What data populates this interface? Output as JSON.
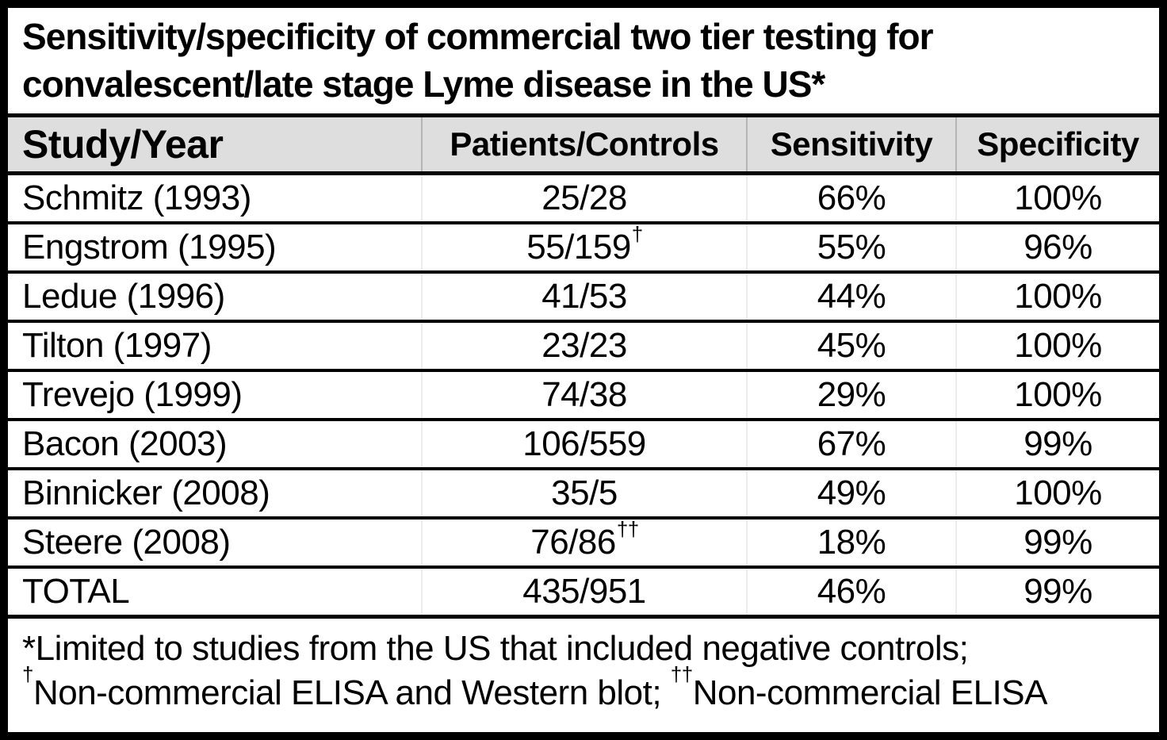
{
  "chart_data": {
    "type": "table",
    "title": "Sensitivity/specificity of commercial two tier testing for convalescent/late stage Lyme disease in the US*",
    "title_line1": "Sensitivity/specificity of commercial two tier testing for",
    "title_line2": "convalescent/late stage Lyme disease in the US*",
    "columns": [
      "Study/Year",
      "Patients/Controls",
      "Sensitivity",
      "Specificity"
    ],
    "rows": [
      {
        "study": "Schmitz (1993)",
        "patients_controls": "25/28",
        "superscript": "",
        "sensitivity": "66%",
        "specificity": "100%"
      },
      {
        "study": "Engstrom (1995)",
        "patients_controls": "55/159",
        "superscript": "†",
        "sensitivity": "55%",
        "specificity": "96%"
      },
      {
        "study": "Ledue (1996)",
        "patients_controls": "41/53",
        "superscript": "",
        "sensitivity": "44%",
        "specificity": "100%"
      },
      {
        "study": "Tilton (1997)",
        "patients_controls": "23/23",
        "superscript": "",
        "sensitivity": "45%",
        "specificity": "100%"
      },
      {
        "study": "Trevejo (1999)",
        "patients_controls": "74/38",
        "superscript": "",
        "sensitivity": "29%",
        "specificity": "100%"
      },
      {
        "study": "Bacon (2003)",
        "patients_controls": "106/559",
        "superscript": "",
        "sensitivity": "67%",
        "specificity": "99%"
      },
      {
        "study": "Binnicker (2008)",
        "patients_controls": "35/5",
        "superscript": "",
        "sensitivity": "49%",
        "specificity": "100%"
      },
      {
        "study": "Steere (2008)",
        "patients_controls": "76/86",
        "superscript": "††",
        "sensitivity": "18%",
        "specificity": "99%"
      },
      {
        "study": "TOTAL",
        "patients_controls": "435/951",
        "superscript": "",
        "sensitivity": "46%",
        "specificity": "99%"
      }
    ],
    "footnotes": {
      "line1": "*Limited to studies from the US that included negative controls;",
      "line2_sup1": "†",
      "line2_text1": "Non-commercial ELISA and Western blot; ",
      "line2_sup2": "††",
      "line2_text2": "Non-commercial ELISA"
    },
    "layout_hints": {
      "header_bg": "#dedede",
      "border_color": "#000000",
      "body_bg": "#ffffff"
    }
  }
}
